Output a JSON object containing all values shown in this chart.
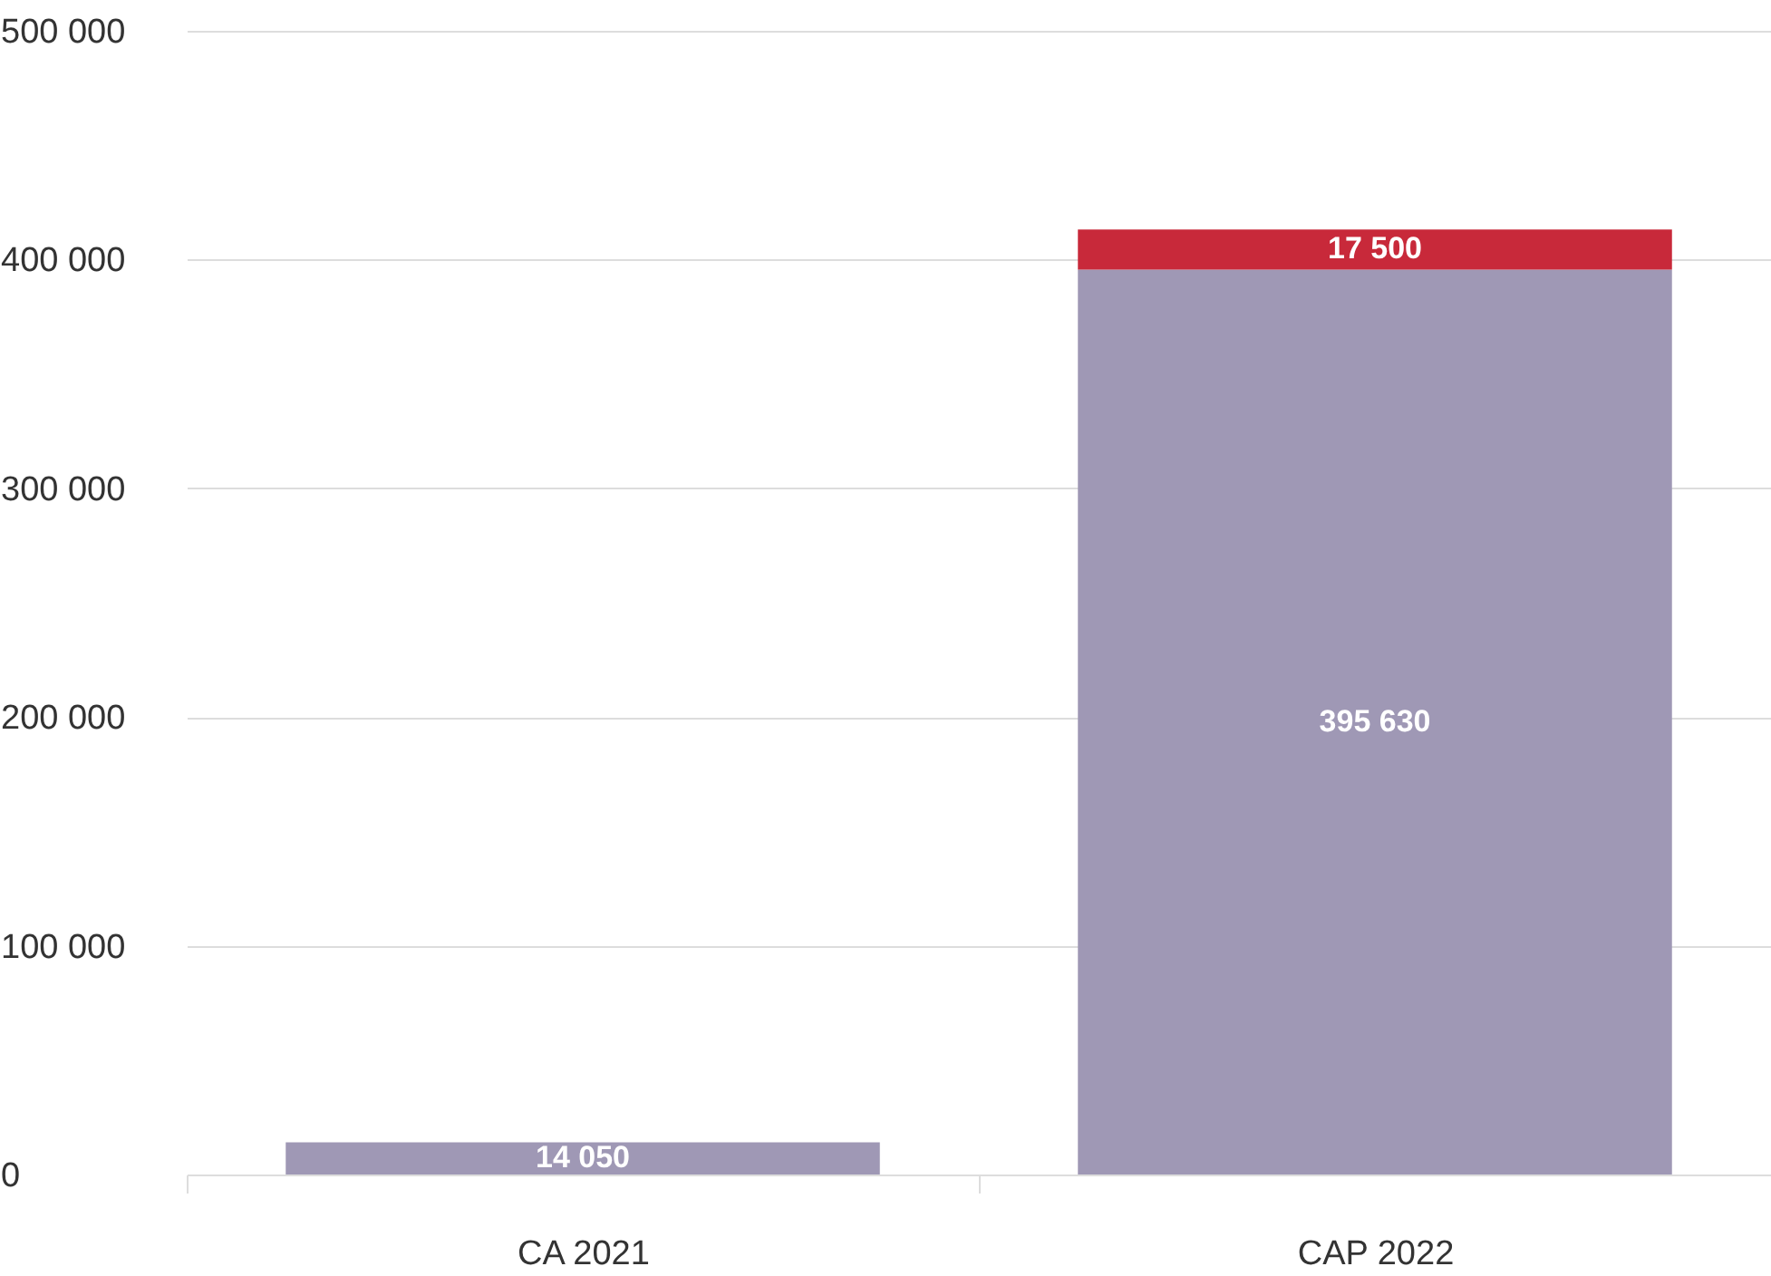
{
  "chart_data": {
    "type": "bar",
    "categories": [
      "CA 2021",
      "CAP 2022"
    ],
    "stacked": true,
    "data_labels": true,
    "grid": "y",
    "series": [
      {
        "color": "#9f98b5",
        "values": [
          14050,
          395630
        ]
      },
      {
        "color": "#c8293a",
        "values": [
          null,
          17500
        ]
      }
    ],
    "ylim": [
      0,
      500000
    ],
    "yticks": [
      {
        "value": 0,
        "label": "0"
      },
      {
        "value": 100000,
        "label": "100 000"
      },
      {
        "value": 200000,
        "label": "200 000"
      },
      {
        "value": 300000,
        "label": "300 000"
      },
      {
        "value": 400000,
        "label": "400 000"
      },
      {
        "value": 500000,
        "label": "500 000"
      }
    ]
  }
}
